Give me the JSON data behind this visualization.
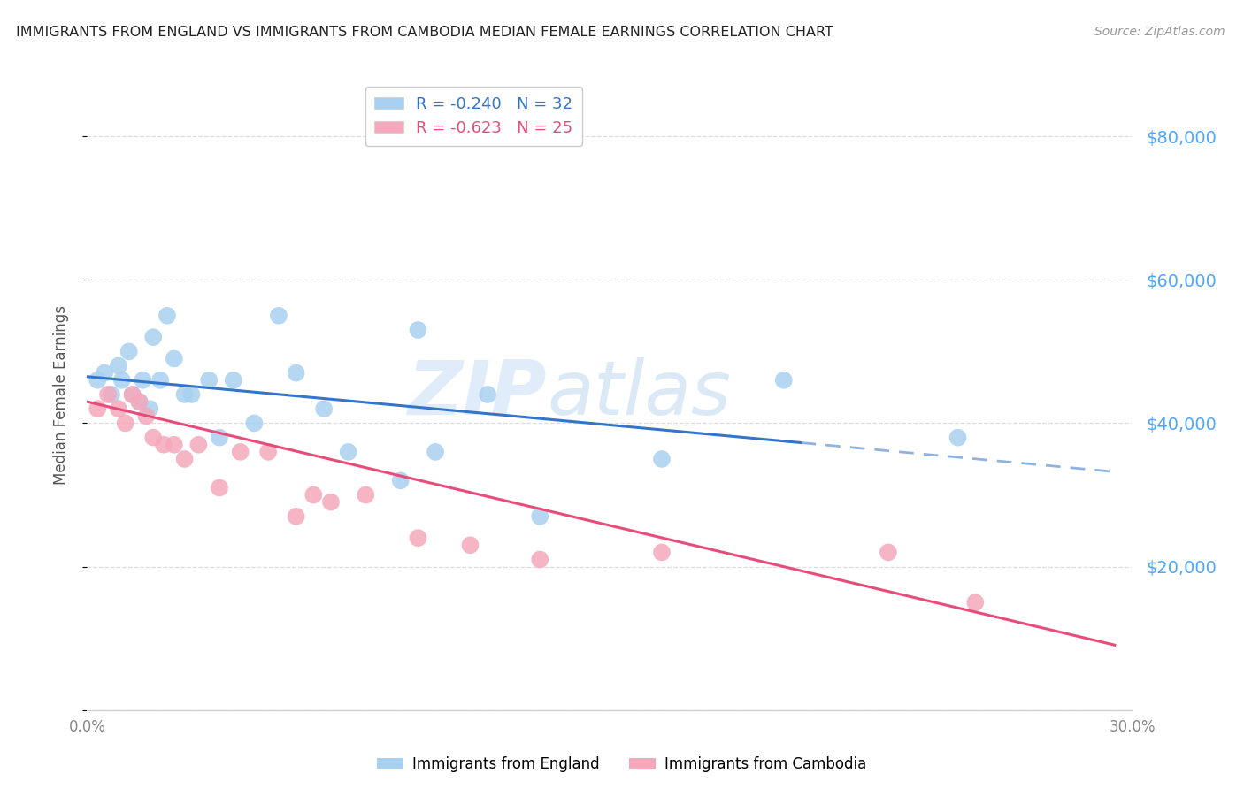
{
  "title": "IMMIGRANTS FROM ENGLAND VS IMMIGRANTS FROM CAMBODIA MEDIAN FEMALE EARNINGS CORRELATION CHART",
  "source": "Source: ZipAtlas.com",
  "ylabel": "Median Female Earnings",
  "xlim": [
    0.0,
    0.3
  ],
  "ylim": [
    0,
    88000
  ],
  "yticks": [
    0,
    20000,
    40000,
    60000,
    80000
  ],
  "ytick_labels": [
    "",
    "$20,000",
    "$40,000",
    "$60,000",
    "$80,000"
  ],
  "xticks": [
    0.0,
    0.05,
    0.1,
    0.15,
    0.2,
    0.25,
    0.3
  ],
  "xtick_labels": [
    "0.0%",
    "",
    "",
    "",
    "",
    "",
    "30.0%"
  ],
  "england_color": "#a8d0f0",
  "cambodia_color": "#f5a8bb",
  "england_line_color": "#3375c8",
  "cambodia_line_color": "#e84c7a",
  "R_england": -0.24,
  "N_england": 32,
  "R_cambodia": -0.623,
  "N_cambodia": 25,
  "watermark_zip": "ZIP",
  "watermark_atlas": "atlas",
  "england_x": [
    0.003,
    0.005,
    0.007,
    0.009,
    0.01,
    0.012,
    0.013,
    0.015,
    0.016,
    0.018,
    0.019,
    0.021,
    0.023,
    0.025,
    0.028,
    0.03,
    0.035,
    0.038,
    0.042,
    0.048,
    0.055,
    0.06,
    0.068,
    0.075,
    0.09,
    0.095,
    0.1,
    0.115,
    0.13,
    0.165,
    0.2,
    0.25
  ],
  "england_y": [
    46000,
    47000,
    44000,
    48000,
    46000,
    50000,
    44000,
    43000,
    46000,
    42000,
    52000,
    46000,
    55000,
    49000,
    44000,
    44000,
    46000,
    38000,
    46000,
    40000,
    55000,
    47000,
    42000,
    36000,
    32000,
    53000,
    36000,
    44000,
    27000,
    35000,
    46000,
    38000
  ],
  "cambodia_x": [
    0.003,
    0.006,
    0.009,
    0.011,
    0.013,
    0.015,
    0.017,
    0.019,
    0.022,
    0.025,
    0.028,
    0.032,
    0.038,
    0.044,
    0.052,
    0.06,
    0.065,
    0.07,
    0.08,
    0.095,
    0.11,
    0.13,
    0.165,
    0.23,
    0.255
  ],
  "cambodia_y": [
    42000,
    44000,
    42000,
    40000,
    44000,
    43000,
    41000,
    38000,
    37000,
    37000,
    35000,
    37000,
    31000,
    36000,
    36000,
    27000,
    30000,
    29000,
    30000,
    24000,
    23000,
    21000,
    22000,
    22000,
    15000
  ],
  "background_color": "#ffffff",
  "grid_color": "#dddddd",
  "title_color": "#222222",
  "right_tick_color": "#4da6ff",
  "england_line_intercept": 46500,
  "england_line_slope": -45000,
  "cambodia_line_intercept": 43000,
  "cambodia_line_slope": -115000
}
